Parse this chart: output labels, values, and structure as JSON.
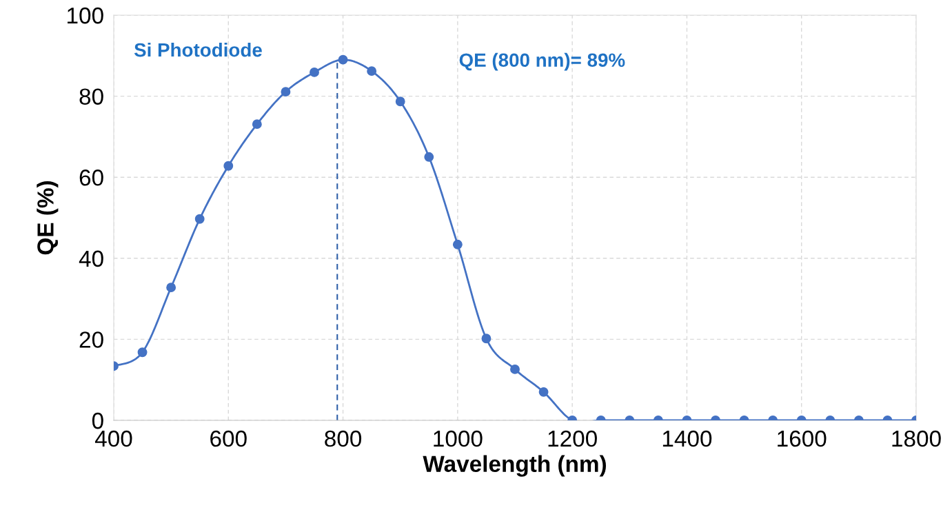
{
  "chart_data": {
    "type": "line",
    "xlabel": "Wavelength (nm)",
    "ylabel": "QE (%)",
    "x": [
      400,
      450,
      500,
      550,
      600,
      650,
      700,
      750,
      800,
      850,
      900,
      950,
      1000,
      1050,
      1100,
      1150,
      1200,
      1250,
      1300,
      1350,
      1400,
      1450,
      1500,
      1550,
      1600,
      1650,
      1700,
      1750,
      1800
    ],
    "series": [
      {
        "color": "#4472c4",
        "values": [
          13.4,
          16.8,
          32.8,
          49.7,
          62.8,
          73.1,
          81.1,
          85.9,
          89,
          86.2,
          78.7,
          65.0,
          43.4,
          20.2,
          12.6,
          7.0,
          0,
          0,
          0,
          0,
          0,
          0,
          0,
          0,
          0,
          0,
          0,
          0,
          0
        ]
      }
    ],
    "marker": "circle",
    "xlim": [
      400,
      1800
    ],
    "xticks": [
      400,
      600,
      800,
      1000,
      1200,
      1400,
      1600,
      1800
    ],
    "ylim": [
      0,
      100
    ],
    "yticks": [
      0,
      20,
      40,
      60,
      80,
      100
    ],
    "grid": true,
    "ref_lines": [
      {
        "axis": "x",
        "value": 790,
        "color": "#2e5fa8",
        "line_style": "dashed"
      }
    ],
    "annotations": [
      "Si Photodiode",
      "QE (800 nm)= 89%"
    ]
  }
}
